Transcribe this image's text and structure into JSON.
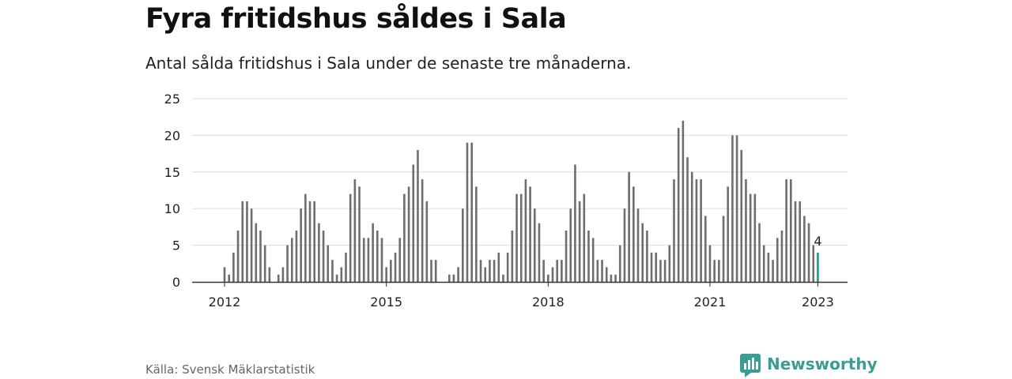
{
  "header": {
    "title": "Fyra fritidshus såldes i Sala",
    "subtitle": "Antal sålda fritidshus i Sala under de senaste tre månaderna."
  },
  "footer": {
    "source": "Källa: Svensk Mäklarstatistik",
    "brand": "Newsworthy",
    "brand_icon": "newsworthy-logo-icon"
  },
  "colors": {
    "bar": "#6d6d72",
    "highlight": "#1a9c9c",
    "grid": "#dcdcdc",
    "axis": "#333333",
    "brand": "#3a9c94"
  },
  "chart_data": {
    "type": "bar",
    "title": "Fyra fritidshus såldes i Sala",
    "subtitle": "Antal sålda fritidshus i Sala under de senaste tre månaderna.",
    "xlabel": "",
    "ylabel": "",
    "ylim": [
      0,
      25
    ],
    "y_ticks": [
      0,
      5,
      10,
      15,
      20,
      25
    ],
    "x_ticks": [
      "2012",
      "2015",
      "2018",
      "2021",
      "2023"
    ],
    "grid": true,
    "legend": "none",
    "x_start": "2012-01",
    "x_end": "2023-01",
    "values": [
      2,
      1,
      4,
      7,
      11,
      11,
      10,
      8,
      7,
      5,
      2,
      0,
      1,
      2,
      5,
      6,
      7,
      10,
      12,
      11,
      11,
      8,
      7,
      5,
      3,
      1,
      2,
      4,
      12,
      14,
      13,
      6,
      6,
      8,
      7,
      6,
      2,
      3,
      4,
      6,
      12,
      13,
      16,
      18,
      14,
      11,
      3,
      3,
      0,
      0,
      1,
      1,
      2,
      10,
      19,
      19,
      13,
      3,
      2,
      3,
      3,
      4,
      1,
      4,
      7,
      12,
      12,
      14,
      13,
      10,
      8,
      3,
      1,
      2,
      3,
      3,
      7,
      10,
      16,
      11,
      12,
      7,
      6,
      3,
      3,
      2,
      1,
      1,
      5,
      10,
      15,
      13,
      10,
      8,
      7,
      4,
      4,
      3,
      3,
      5,
      14,
      21,
      22,
      17,
      15,
      14,
      14,
      9,
      5,
      3,
      3,
      9,
      13,
      20,
      20,
      18,
      14,
      12,
      12,
      8,
      5,
      4,
      3,
      6,
      7,
      14,
      14,
      11,
      11,
      9,
      8,
      5,
      4
    ],
    "highlight": {
      "value": 4,
      "label": "4"
    }
  }
}
